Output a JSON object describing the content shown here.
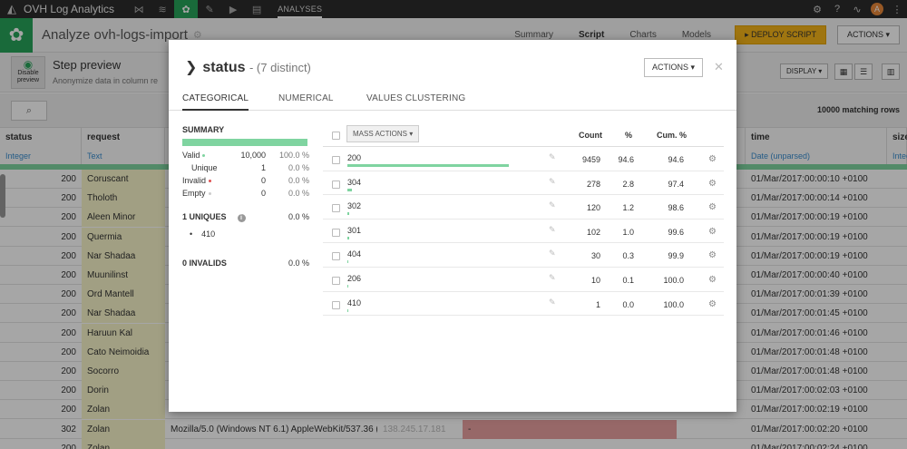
{
  "topbar": {
    "app_name": "OVH Log Analytics",
    "section": "ANALYSES",
    "avatar_letter": "A",
    "accent": "#27a35a"
  },
  "header": {
    "title": "Analyze ovh-logs-import",
    "tabs": [
      "Summary",
      "Script",
      "Charts",
      "Models"
    ],
    "active_tab": "Script",
    "deploy_label": "DEPLOY SCRIPT",
    "actions_label": "ACTIONS"
  },
  "step": {
    "disable_preview_label": "Disable preview",
    "title": "Step preview",
    "subtitle": "Anonymize data in column re",
    "display_label": "DISPLAY"
  },
  "search": {
    "matching": "10000 matching rows"
  },
  "table": {
    "columns": {
      "status": {
        "name": "status",
        "type": "Integer"
      },
      "request": {
        "name": "request",
        "type": "Text"
      },
      "time": {
        "name": "time",
        "type": "Date (unparsed)"
      },
      "size": {
        "name": "size",
        "type": "Integ"
      }
    },
    "rows": [
      {
        "status": "200",
        "request": "Coruscant",
        "time": "01/Mar/2017:00:00:10 +0100"
      },
      {
        "status": "200",
        "request": "Tholoth",
        "time": "01/Mar/2017:00:00:14 +0100"
      },
      {
        "status": "200",
        "request": "Aleen Minor",
        "time": "01/Mar/2017:00:00:19 +0100"
      },
      {
        "status": "200",
        "request": "Quermia",
        "time": "01/Mar/2017:00:00:19 +0100"
      },
      {
        "status": "200",
        "request": "Nar Shadaa",
        "time": "01/Mar/2017:00:00:19 +0100"
      },
      {
        "status": "200",
        "request": "Muunilinst",
        "time": "01/Mar/2017:00:00:40 +0100"
      },
      {
        "status": "200",
        "request": "Ord Mantell",
        "time": "01/Mar/2017:00:01:39 +0100"
      },
      {
        "status": "200",
        "request": "Nar Shadaa",
        "time": "01/Mar/2017:00:01:45 +0100"
      },
      {
        "status": "200",
        "request": "Haruun Kal",
        "time": "01/Mar/2017:00:01:46 +0100"
      },
      {
        "status": "200",
        "request": "Cato Neimoidia",
        "time": "01/Mar/2017:00:01:48 +0100"
      },
      {
        "status": "200",
        "request": "Socorro",
        "time": "01/Mar/2017:00:01:48 +0100"
      },
      {
        "status": "200",
        "request": "Dorin",
        "time": "01/Mar/2017:00:02:03 +0100"
      },
      {
        "status": "200",
        "request": "Zolan",
        "time": "01/Mar/2017:00:02:19 +0100"
      },
      {
        "status": "302",
        "request": "Zolan",
        "time": "01/Mar/2017:00:02:20 +0100",
        "agent": "Mozilla/5.0 (Windows NT 6.1) AppleWebKit/537.36 (...",
        "ip": "138.245.17.181",
        "extra": "-"
      },
      {
        "status": "200",
        "request": "Zolan",
        "time": "01/Mar/2017:00:02:24 +0100"
      }
    ]
  },
  "modal": {
    "column": "status",
    "distinct": "- (7 distinct)",
    "actions_label": "ACTIONS",
    "tabs": [
      "CATEGORICAL",
      "NUMERICAL",
      "VALUES CLUSTERING"
    ],
    "active_tab": "CATEGORICAL",
    "summary": {
      "heading": "SUMMARY",
      "valid": {
        "label": "Valid",
        "count": "10,000",
        "pct": "100.0 %"
      },
      "unique": {
        "label": "Unique",
        "count": "1",
        "pct": "0.0 %"
      },
      "invalid": {
        "label": "Invalid",
        "count": "0",
        "pct": "0.0 %"
      },
      "empty": {
        "label": "Empty",
        "count": "0",
        "pct": "0.0 %"
      },
      "uniques_heading": "1 UNIQUES",
      "uniques_pct": "0.0 %",
      "unique_value": "410",
      "invalids_heading": "0 INVALIDS",
      "invalids_pct": "0.0 %",
      "valid_color": "#7fd4a0",
      "invalid_color": "#e05050"
    },
    "values_table": {
      "mass_actions_label": "MASS ACTIONS",
      "headers": {
        "count": "Count",
        "pct": "%",
        "cum": "Cum. %"
      },
      "rows": [
        {
          "value": "200",
          "count": "9459",
          "pct": "94.6",
          "cum": "94.6",
          "frac": 0.946
        },
        {
          "value": "304",
          "count": "278",
          "pct": "2.8",
          "cum": "97.4",
          "frac": 0.028
        },
        {
          "value": "302",
          "count": "120",
          "pct": "1.2",
          "cum": "98.6",
          "frac": 0.012
        },
        {
          "value": "301",
          "count": "102",
          "pct": "1.0",
          "cum": "99.6",
          "frac": 0.01
        },
        {
          "value": "404",
          "count": "30",
          "pct": "0.3",
          "cum": "99.9",
          "frac": 0.003
        },
        {
          "value": "206",
          "count": "10",
          "pct": "0.1",
          "cum": "100.0",
          "frac": 0.001
        },
        {
          "value": "410",
          "count": "1",
          "pct": "0.0",
          "cum": "100.0",
          "frac": 0.0001
        }
      ]
    }
  }
}
